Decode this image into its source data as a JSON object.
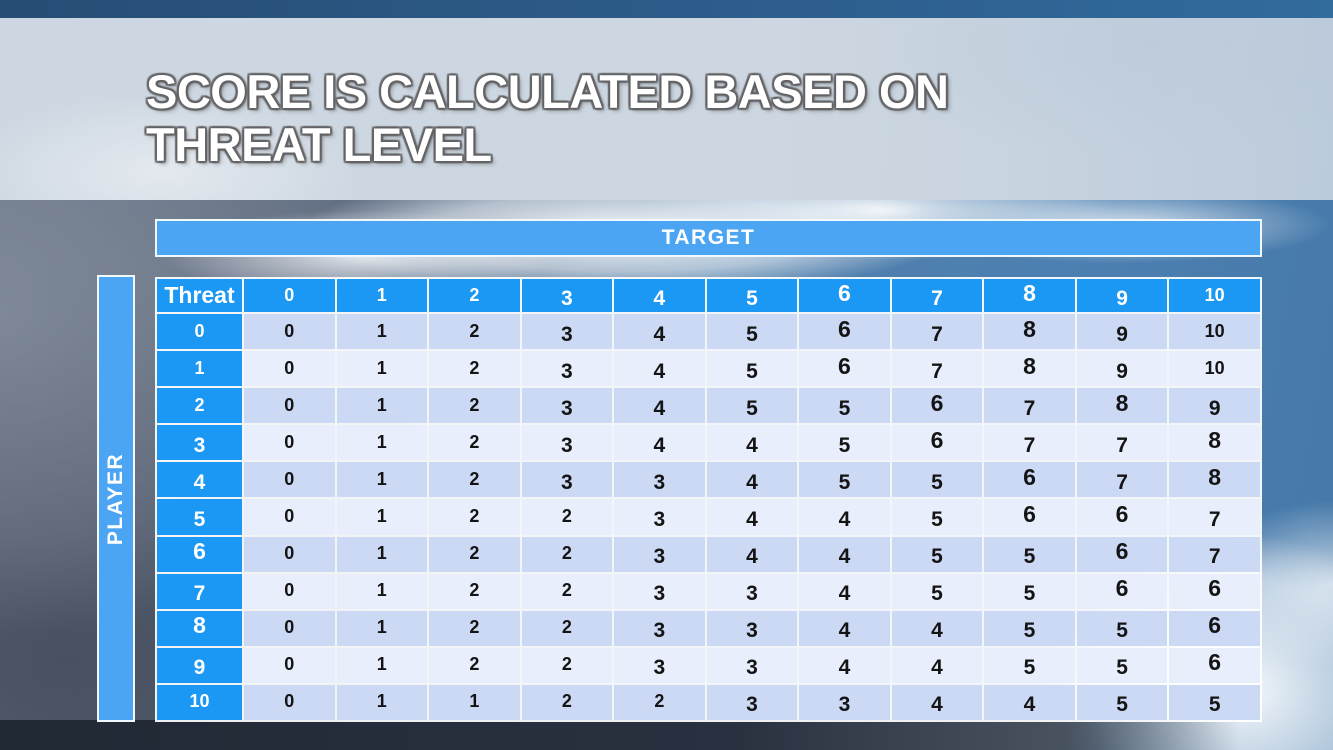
{
  "slide": {
    "title_line1": "SCORE IS CALCULATED BASED ON",
    "title_line2": "THREAT LEVEL"
  },
  "table": {
    "target_label": "TARGET",
    "player_label": "PLAYER",
    "corner_label": "Threat",
    "column_headers": [
      "0",
      "1",
      "2",
      "3",
      "4",
      "5",
      "6",
      "7",
      "8",
      "9",
      "10"
    ],
    "row_headers": [
      "0",
      "1",
      "2",
      "3",
      "4",
      "5",
      "6",
      "7",
      "8",
      "9",
      "10"
    ],
    "rows": [
      [
        0,
        1,
        2,
        3,
        4,
        5,
        6,
        7,
        8,
        9,
        10
      ],
      [
        0,
        1,
        2,
        3,
        4,
        5,
        6,
        7,
        8,
        9,
        10
      ],
      [
        0,
        1,
        2,
        3,
        4,
        5,
        5,
        6,
        7,
        8,
        9
      ],
      [
        0,
        1,
        2,
        3,
        4,
        4,
        5,
        6,
        7,
        7,
        8
      ],
      [
        0,
        1,
        2,
        3,
        3,
        4,
        5,
        5,
        6,
        7,
        8
      ],
      [
        0,
        1,
        2,
        2,
        3,
        4,
        4,
        5,
        6,
        6,
        7
      ],
      [
        0,
        1,
        2,
        2,
        3,
        4,
        4,
        5,
        5,
        6,
        7
      ],
      [
        0,
        1,
        2,
        2,
        3,
        3,
        4,
        5,
        5,
        6,
        6
      ],
      [
        0,
        1,
        2,
        2,
        3,
        3,
        4,
        4,
        5,
        5,
        6
      ],
      [
        0,
        1,
        2,
        2,
        3,
        3,
        4,
        4,
        5,
        5,
        6
      ],
      [
        0,
        1,
        1,
        2,
        2,
        3,
        3,
        4,
        4,
        5,
        5
      ]
    ]
  },
  "colors": {
    "header_blue": "#1b98f4",
    "band_blue": "#4ba5f3",
    "row_even": "#ccd9f5",
    "row_odd": "#e9eefc",
    "cell_text": "#141414"
  }
}
